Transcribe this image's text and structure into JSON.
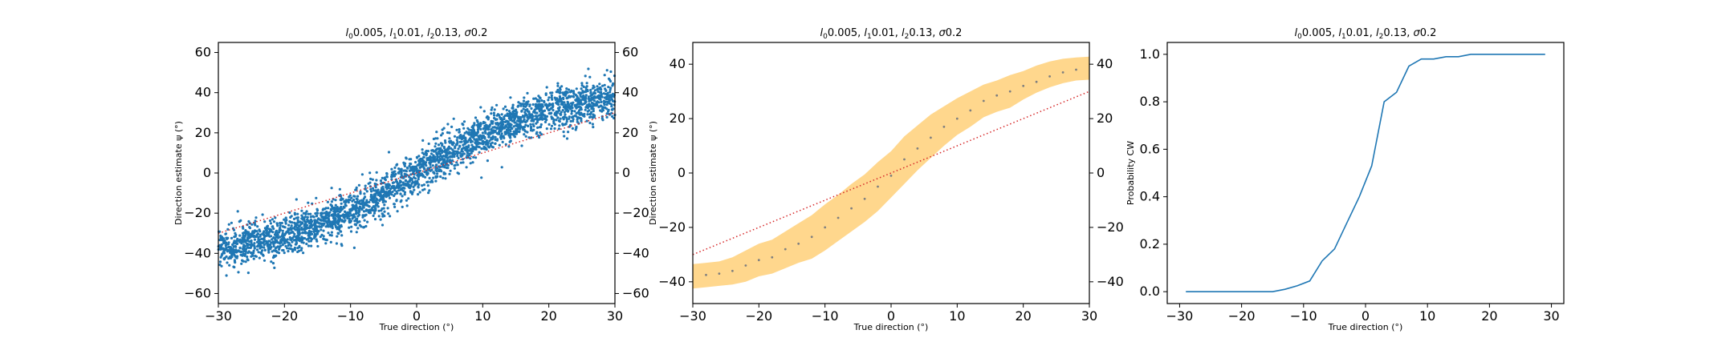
{
  "chart_data": [
    {
      "type": "scatter",
      "title": "l_0 = 0.005, l_1 = 0.01, l_2 = 0.13, σ = 0.2",
      "title_parts": {
        "l0": "0.005",
        "l1": "0.01",
        "l2": "0.13",
        "sigma": "0.2"
      },
      "xlabel": "True direction (°)",
      "ylabel": "Direction estimate ψ (°)",
      "xlim": [
        -30,
        30
      ],
      "ylim": [
        -65,
        65
      ],
      "xticks": [
        -30,
        -20,
        -10,
        0,
        10,
        20,
        30
      ],
      "yticks": [
        -60,
        -40,
        -20,
        0,
        20,
        40,
        60
      ],
      "right_yticks": [
        -60,
        -40,
        -20,
        0,
        20,
        40,
        60
      ],
      "scatter_color": "#1f77b4",
      "reference_line": {
        "x": [
          -30,
          30
        ],
        "y": [
          -30,
          30
        ],
        "color": "#d62728",
        "style": "dotted"
      },
      "mean_curve": {
        "x": [
          -30,
          -25,
          -20,
          -15,
          -10,
          -5,
          0,
          5,
          10,
          15,
          20,
          25,
          30
        ],
        "y": [
          -38,
          -35,
          -31,
          -26,
          -19,
          -10,
          0,
          10,
          19,
          26,
          31,
          35,
          38
        ]
      },
      "noise_sd": 5,
      "n_points": 3000
    },
    {
      "type": "line",
      "title": "l_0 = 0.005, l_1 = 0.01, l_2 = 0.13, σ = 0.2",
      "title_parts": {
        "l0": "0.005",
        "l1": "0.01",
        "l2": "0.13",
        "sigma": "0.2"
      },
      "xlabel": "True direction (°)",
      "ylabel": "Direction estimate ψ (°)",
      "xlim": [
        -30,
        30
      ],
      "ylim": [
        -48,
        48
      ],
      "xticks": [
        -30,
        -20,
        -10,
        0,
        10,
        20,
        30
      ],
      "yticks": [
        -40,
        -20,
        0,
        20,
        40
      ],
      "right_yticks": [
        -40,
        -20,
        0,
        20,
        40
      ],
      "band_color": "#ffd587",
      "mean_color": "#7f7f7f",
      "reference_line": {
        "x": [
          -30,
          30
        ],
        "y": [
          -30,
          30
        ],
        "color": "#d62728",
        "style": "dotted"
      },
      "x": [
        -28,
        -26,
        -24,
        -22,
        -20,
        -18,
        -16,
        -14,
        -12,
        -10,
        -8,
        -6,
        -4,
        -2,
        0,
        2,
        4,
        6,
        8,
        10,
        12,
        14,
        16,
        18,
        20,
        22,
        24,
        26,
        28
      ],
      "mean": [
        -37.5,
        -37,
        -36,
        -34,
        -32,
        -31,
        -28,
        -26,
        -23.5,
        -20,
        -16.5,
        -13,
        -9.5,
        -5,
        -1,
        5,
        9,
        13,
        17,
        20,
        23,
        26.5,
        28.5,
        30,
        32,
        33.5,
        35.5,
        37,
        38
      ],
      "lower": [
        -42,
        -41.5,
        -41,
        -40,
        -38,
        -37,
        -35,
        -33,
        -31.5,
        -28.5,
        -25,
        -21.5,
        -18,
        -14,
        -9,
        -4,
        1,
        5.5,
        10,
        14,
        17,
        20.5,
        22.5,
        24,
        27,
        29.5,
        31.5,
        33,
        34
      ],
      "upper": [
        -33,
        -32.5,
        -31,
        -28.5,
        -26,
        -24.5,
        -21.5,
        -18.5,
        -15.5,
        -11.5,
        -8,
        -4,
        -0.5,
        4,
        8,
        13.5,
        17.5,
        21.5,
        24.5,
        27.5,
        30,
        32.5,
        34,
        36,
        37.5,
        39.5,
        41,
        42,
        42.5
      ]
    },
    {
      "type": "line",
      "title": "l_0 = 0.005, l_1 = 0.01, l_2 = 0.13, σ = 0.2",
      "title_parts": {
        "l0": "0.005",
        "l1": "0.01",
        "l2": "0.13",
        "sigma": "0.2"
      },
      "xlabel": "True direction (°)",
      "ylabel": "Probability CW",
      "xlim": [
        -32,
        32
      ],
      "ylim": [
        -0.05,
        1.05
      ],
      "xticks": [
        -30,
        -20,
        -10,
        0,
        10,
        20,
        30
      ],
      "yticks": [
        0.0,
        0.2,
        0.4,
        0.6,
        0.8,
        1.0
      ],
      "ytick_labels": [
        "0.0",
        "0.2",
        "0.4",
        "0.6",
        "0.8",
        "1.0"
      ],
      "line_color": "#1f77b4",
      "x": [
        -29,
        -27,
        -25,
        -23,
        -21,
        -19,
        -17,
        -15,
        -13,
        -11,
        -9,
        -7,
        -5,
        -3,
        -1,
        1,
        3,
        5,
        7,
        9,
        11,
        13,
        15,
        17,
        19,
        21,
        23,
        25,
        27,
        29
      ],
      "y": [
        0,
        0,
        0,
        0,
        0,
        0,
        0,
        0,
        0.01,
        0.025,
        0.045,
        0.13,
        0.18,
        0.29,
        0.4,
        0.53,
        0.8,
        0.84,
        0.95,
        0.98,
        0.98,
        0.99,
        0.99,
        1.0,
        1.0,
        1.0,
        1.0,
        1.0,
        1.0,
        1.0
      ]
    }
  ]
}
